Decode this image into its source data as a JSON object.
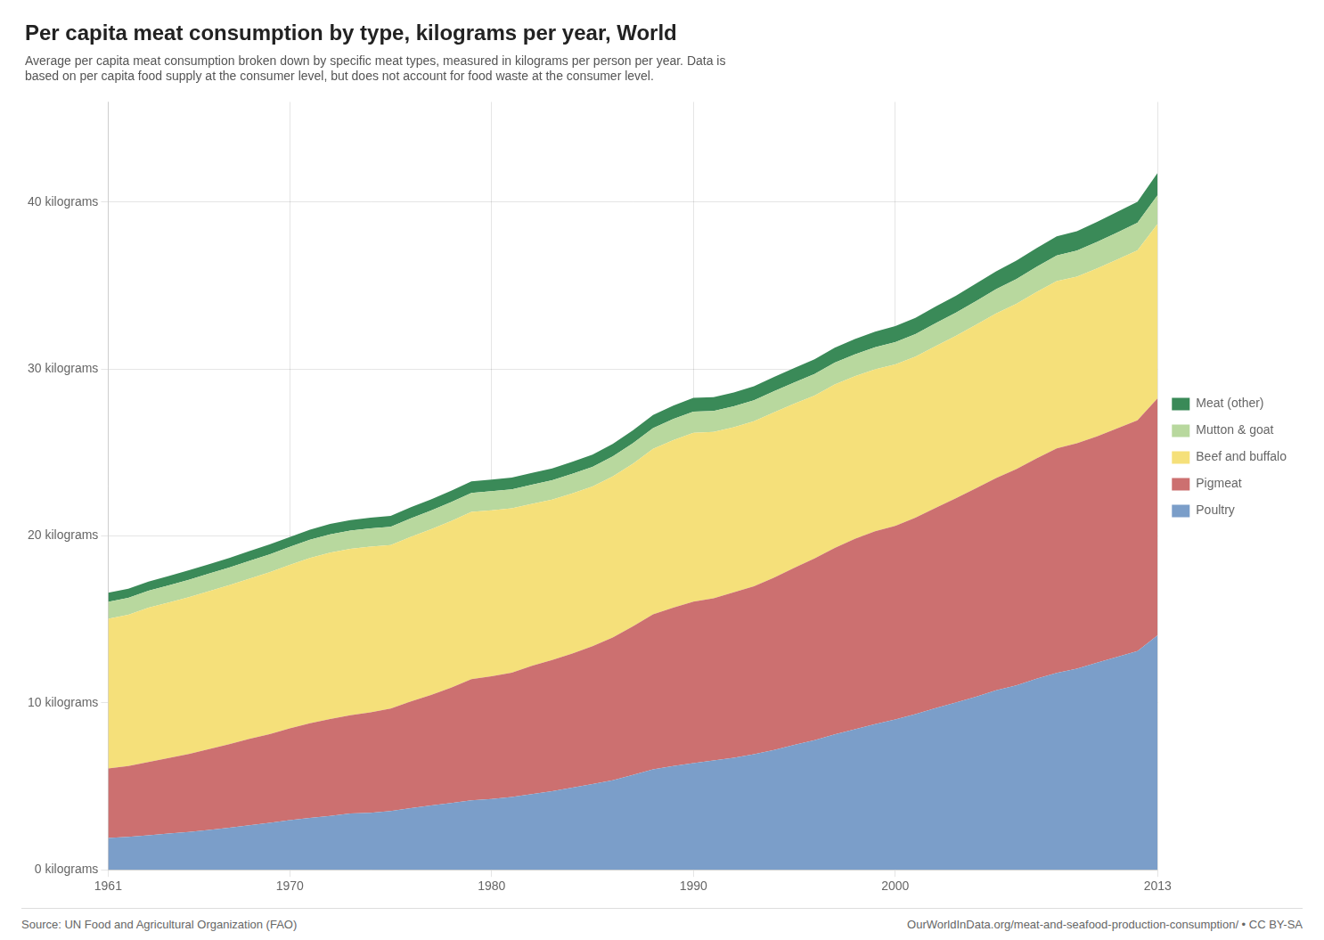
{
  "chart_data": {
    "type": "area",
    "title": "Per capita meat consumption by type, kilograms per year, World",
    "subtitle": [
      "Average per capita meat consumption broken down by specific meat types, measured in kilograms per person per year. Data is",
      "based on per capita food supply at the consumer level, but does not account for food waste at the consumer level."
    ],
    "annotations": [
      "Source: UN Food and Agricultural Organization (FAO)",
      "OurWorldInData.org/meat-and-seafood-production-consumption/ • CC BY-SA"
    ],
    "x": [
      1961,
      1962,
      1963,
      1964,
      1965,
      1966,
      1967,
      1968,
      1969,
      1970,
      1971,
      1972,
      1973,
      1974,
      1975,
      1976,
      1977,
      1978,
      1979,
      1980,
      1981,
      1982,
      1983,
      1984,
      1985,
      1986,
      1987,
      1988,
      1989,
      1990,
      1991,
      1992,
      1993,
      1994,
      1995,
      1996,
      1997,
      1998,
      1999,
      2000,
      2001,
      2002,
      2003,
      2004,
      2005,
      2006,
      2007,
      2008,
      2009,
      2010,
      2011,
      2012,
      2013
    ],
    "series": [
      {
        "name": "Poultry",
        "color": "#7b9ec9",
        "values": [
          1.91,
          1.97,
          2.07,
          2.17,
          2.26,
          2.38,
          2.52,
          2.67,
          2.81,
          2.97,
          3.1,
          3.23,
          3.37,
          3.42,
          3.52,
          3.7,
          3.85,
          4.0,
          4.16,
          4.24,
          4.36,
          4.53,
          4.71,
          4.92,
          5.13,
          5.36,
          5.68,
          6.02,
          6.22,
          6.39,
          6.55,
          6.71,
          6.92,
          7.18,
          7.48,
          7.77,
          8.11,
          8.42,
          8.72,
          9.0,
          9.33,
          9.68,
          10.02,
          10.37,
          10.75,
          11.05,
          11.45,
          11.8,
          12.05,
          12.41,
          12.75,
          13.1,
          14.05
        ]
      },
      {
        "name": "Pigmeat",
        "color": "#cc7070",
        "values": [
          4.16,
          4.24,
          4.38,
          4.52,
          4.68,
          4.85,
          5.01,
          5.17,
          5.32,
          5.5,
          5.68,
          5.8,
          5.89,
          6.01,
          6.14,
          6.39,
          6.62,
          6.91,
          7.26,
          7.36,
          7.45,
          7.69,
          7.86,
          8.04,
          8.26,
          8.56,
          8.9,
          9.28,
          9.48,
          9.67,
          9.71,
          9.92,
          10.07,
          10.32,
          10.61,
          10.88,
          11.17,
          11.41,
          11.56,
          11.6,
          11.76,
          12.0,
          12.24,
          12.48,
          12.72,
          12.96,
          13.2,
          13.44,
          13.5,
          13.56,
          13.69,
          13.83,
          14.2
        ]
      },
      {
        "name": "Beef and buffalo",
        "color": "#f5e07a",
        "values": [
          8.97,
          9.07,
          9.25,
          9.32,
          9.39,
          9.46,
          9.52,
          9.6,
          9.69,
          9.79,
          9.9,
          9.97,
          9.96,
          9.93,
          9.79,
          9.86,
          9.93,
          9.99,
          10.02,
          9.94,
          9.84,
          9.7,
          9.61,
          9.59,
          9.57,
          9.64,
          9.75,
          9.92,
          10.04,
          10.12,
          9.97,
          9.88,
          9.88,
          9.91,
          9.83,
          9.76,
          9.8,
          9.74,
          9.7,
          9.68,
          9.65,
          9.69,
          9.72,
          9.8,
          9.86,
          9.9,
          9.96,
          10.02,
          9.98,
          10.05,
          10.12,
          10.18,
          10.45
        ]
      },
      {
        "name": "Mutton & goat",
        "color": "#b8d89e",
        "values": [
          1.01,
          1.01,
          1.02,
          1.03,
          1.04,
          1.05,
          1.05,
          1.06,
          1.07,
          1.08,
          1.09,
          1.1,
          1.1,
          1.1,
          1.1,
          1.11,
          1.12,
          1.13,
          1.14,
          1.14,
          1.14,
          1.15,
          1.16,
          1.17,
          1.18,
          1.2,
          1.22,
          1.24,
          1.26,
          1.27,
          1.26,
          1.26,
          1.26,
          1.27,
          1.28,
          1.29,
          1.3,
          1.31,
          1.32,
          1.33,
          1.35,
          1.37,
          1.39,
          1.42,
          1.45,
          1.48,
          1.51,
          1.54,
          1.56,
          1.59,
          1.62,
          1.65,
          1.72
        ]
      },
      {
        "name": "Meat (other)",
        "color": "#3a8a58",
        "values": [
          0.55,
          0.55,
          0.55,
          0.56,
          0.57,
          0.57,
          0.58,
          0.59,
          0.6,
          0.6,
          0.61,
          0.62,
          0.63,
          0.64,
          0.65,
          0.66,
          0.67,
          0.68,
          0.69,
          0.69,
          0.7,
          0.71,
          0.71,
          0.72,
          0.73,
          0.75,
          0.77,
          0.79,
          0.8,
          0.82,
          0.82,
          0.83,
          0.84,
          0.85,
          0.86,
          0.88,
          0.9,
          0.92,
          0.94,
          0.96,
          0.98,
          1.0,
          1.02,
          1.05,
          1.07,
          1.1,
          1.12,
          1.15,
          1.17,
          1.2,
          1.23,
          1.26,
          1.33
        ]
      }
    ],
    "xlim": [
      1961,
      2013
    ],
    "xticks": [
      1961,
      1970,
      1980,
      1990,
      2000,
      2013
    ],
    "ylim": [
      0,
      46
    ],
    "yticks": [
      {
        "value": 0,
        "label": "0 kilograms"
      },
      {
        "value": 10,
        "label": "10 kilograms"
      },
      {
        "value": 20,
        "label": "20 kilograms"
      },
      {
        "value": 30,
        "label": "30 kilograms"
      },
      {
        "value": 40,
        "label": "40 kilograms"
      }
    ],
    "stacked": true,
    "grid": true,
    "legend": "right"
  }
}
